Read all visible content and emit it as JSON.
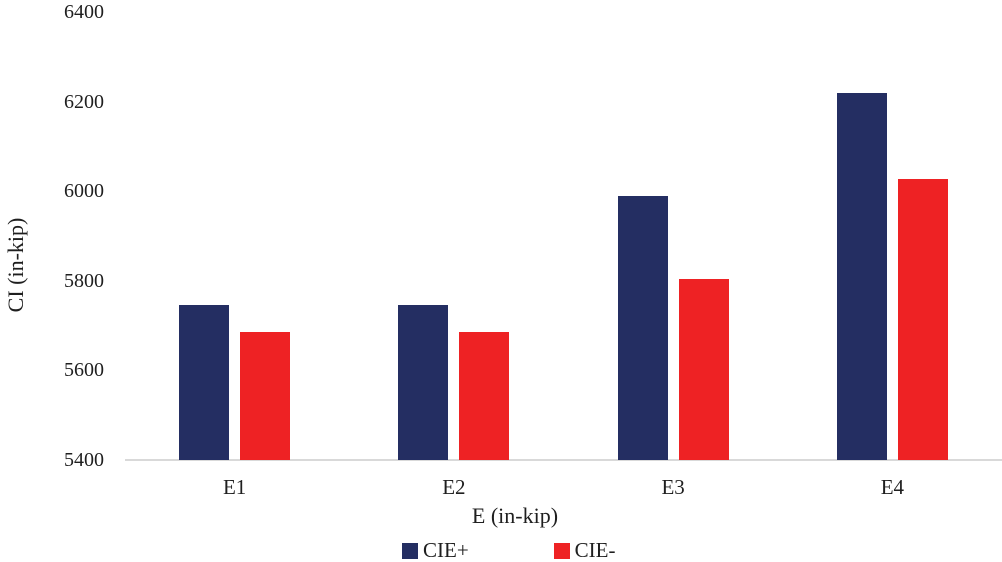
{
  "chart_data": {
    "type": "bar",
    "categories": [
      "E1",
      "E2",
      "E3",
      "E4"
    ],
    "series": [
      {
        "name": "CIE+",
        "color": "#242e62",
        "values": [
          5745,
          5745,
          5990,
          6220
        ]
      },
      {
        "name": "CIE-",
        "color": "#ee2224",
        "values": [
          5685,
          5685,
          5805,
          6028
        ]
      }
    ],
    "title": "",
    "xlabel": "E (in-kip)",
    "ylabel": "CI (in-kip)",
    "ylim": [
      5400,
      6400
    ],
    "yticks": [
      5400,
      5600,
      5800,
      6000,
      6200,
      6400
    ],
    "grid": false,
    "legend_position": "bottom",
    "axis_line_color": "#d9d9d9",
    "text_color": "#1f1f1f"
  }
}
